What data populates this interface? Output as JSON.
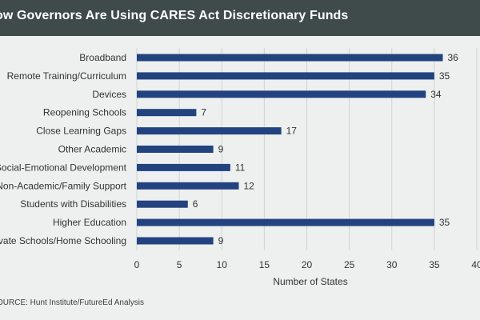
{
  "header": {
    "title": "ow Governors Are Using CARES Act Discretionary Funds"
  },
  "source": "OURCE: Hunt Institute/FutureEd Analysis",
  "colors": {
    "header_bg": "#3f4a4b",
    "background": "#eef0ef",
    "bar": "#22437f",
    "grid": "#cfd4d3"
  },
  "chart_data": {
    "type": "bar",
    "orientation": "horizontal",
    "categories": [
      "Broadband",
      "Remote Training/Curriculum",
      "Devices",
      "Reopening Schools",
      "Close Learning Gaps",
      "Other Academic",
      "Social-Emotional Development",
      "Non-Academic/Family Support",
      "Students with Disabilities",
      "Higher Education",
      "rivate Schools/Home Schooling"
    ],
    "values": [
      36,
      35,
      34,
      7,
      17,
      9,
      11,
      12,
      6,
      35,
      9
    ],
    "data_labels": [
      "36",
      "35",
      "34",
      "7",
      "17",
      "9",
      "11",
      "12",
      "6",
      "35",
      "9"
    ],
    "xlabel": "Number of States",
    "xlim": [
      0,
      40
    ],
    "x_ticks": [
      "0",
      "5",
      "10",
      "15",
      "20",
      "25",
      "30",
      "35",
      "40"
    ],
    "grid": true
  }
}
